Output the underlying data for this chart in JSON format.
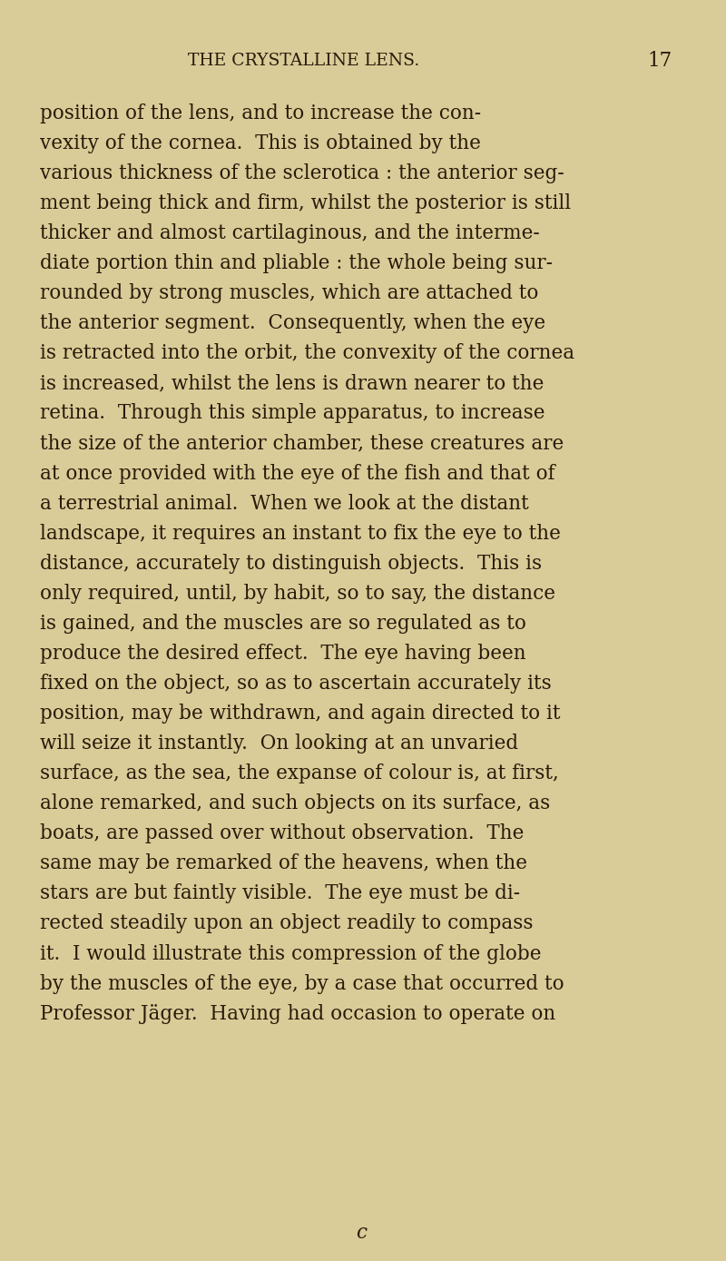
{
  "background_color": "#d9cc98",
  "header_text": "THE CRYSTALLINE LENS.",
  "page_number": "17",
  "text_color": "#2a1a0a",
  "header_color": "#2a1a0a",
  "footer_char": "c",
  "body_text": [
    "position of the lens, and to increase the con-",
    "vexity of the cornea.  This is obtained by the",
    "various thickness of the sclerotica : the anterior seg-",
    "ment being thick and firm, whilst the posterior is still",
    "thicker and almost cartilaginous, and the interme-",
    "diate portion thin and pliable : the whole being sur-",
    "rounded by strong muscles, which are attached to",
    "the anterior segment.  Consequently, when the eye",
    "is retracted into the orbit, the convexity of the cornea",
    "is increased, whilst the lens is drawn nearer to the",
    "retina.  Through this simple apparatus, to increase",
    "the size of the anterior chamber, these creatures are",
    "at once provided with the eye of the fish and that of",
    "a terrestrial animal.  When we look at the distant",
    "landscape, it requires an instant to fix the eye to the",
    "distance, accurately to distinguish objects.  This is",
    "only required, until, by habit, so to say, the distance",
    "is gained, and the muscles are so regulated as to",
    "produce the desired effect.  The eye having been",
    "fixed on the object, so as to ascertain accurately its",
    "position, may be withdrawn, and again directed to it",
    "will seize it instantly.  On looking at an unvaried",
    "surface, as the sea, the expanse of colour is, at first,",
    "alone remarked, and such objects on its surface, as",
    "boats, are passed over without observation.  The",
    "same may be remarked of the heavens, when the",
    "stars are but faintly visible.  The eye must be di-",
    "rected steadily upon an object readily to compass",
    "it.  I would illustrate this compression of the globe",
    "by the muscles of the eye, by a case that occurred to",
    "Professor Jäger.  Having had occasion to operate on"
  ],
  "figsize": [
    8.0,
    13.89
  ],
  "dpi": 100,
  "body_fontsize": 15.5,
  "header_fontsize": 13.5,
  "page_num_fontsize": 15.5
}
